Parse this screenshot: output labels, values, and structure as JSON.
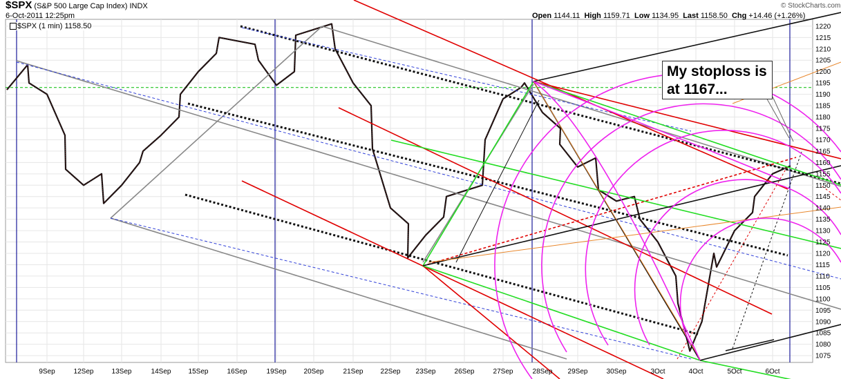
{
  "header": {
    "symbol": "$SPX",
    "name": "(S&P 500 Large Cap Index)",
    "exchange": "INDX",
    "date": "6-Oct-2011 12:25pm",
    "legend": "$SPX (1 min) 1158.50",
    "quote": {
      "open_label": "Open",
      "open": "1144.11",
      "high_label": "High",
      "high": "1159.71",
      "low_label": "Low",
      "low": "1134.95",
      "last_label": "Last",
      "last": "1158.50",
      "chg_label": "Chg",
      "chg": "+14.46 (+1.26%)"
    },
    "watermark": "© StockCharts.com"
  },
  "annotation": "My stoploss is at 1167...",
  "chart_data": {
    "type": "line",
    "title": "$SPX (1 min) 1158.50",
    "xlabel": "",
    "ylabel": "",
    "ylim": [
      1072,
      1223
    ],
    "x_ticks": [
      "9Sep",
      "12Sep",
      "13Sep",
      "14Sep",
      "15Sep",
      "16Sep",
      "19Sep",
      "20Sep",
      "21Sep",
      "22Sep",
      "23Sep",
      "26Sep",
      "27Sep",
      "28Sep",
      "29Sep",
      "30Sep",
      "3Oct",
      "4Oct",
      "5Oct",
      "6Oct"
    ],
    "y_ticks": [
      1075,
      1080,
      1085,
      1090,
      1095,
      1100,
      1105,
      1110,
      1115,
      1120,
      1125,
      1130,
      1135,
      1140,
      1145,
      1150,
      1155,
      1160,
      1165,
      1170,
      1175,
      1180,
      1185,
      1190,
      1195,
      1200,
      1205,
      1210,
      1215,
      1220
    ],
    "series": [
      {
        "name": "$SPX (1 min)",
        "points": [
          [
            "8Sep",
            1192
          ],
          [
            "8Sep",
            1203
          ],
          [
            "9Sep",
            1195
          ],
          [
            "9Sep",
            1190
          ],
          [
            "9Sep",
            1172
          ],
          [
            "12Sep",
            1157
          ],
          [
            "12Sep",
            1150
          ],
          [
            "12Sep",
            1155
          ],
          [
            "13Sep",
            1142
          ],
          [
            "13Sep",
            1150
          ],
          [
            "13Sep",
            1160
          ],
          [
            "14Sep",
            1165
          ],
          [
            "14Sep",
            1172
          ],
          [
            "14Sep",
            1180
          ],
          [
            "15Sep",
            1190
          ],
          [
            "15Sep",
            1200
          ],
          [
            "15Sep",
            1208
          ],
          [
            "16Sep",
            1215
          ],
          [
            "16Sep",
            1212
          ],
          [
            "19Sep",
            1205
          ],
          [
            "19Sep",
            1194
          ],
          [
            "19Sep",
            1200
          ],
          [
            "20Sep",
            1216
          ],
          [
            "20Sep",
            1221
          ],
          [
            "21Sep",
            1210
          ],
          [
            "21Sep",
            1195
          ],
          [
            "21Sep",
            1185
          ],
          [
            "22Sep",
            1166
          ],
          [
            "22Sep",
            1140
          ],
          [
            "22Sep",
            1133
          ],
          [
            "23Sep",
            1118
          ],
          [
            "23Sep",
            1128
          ],
          [
            "23Sep",
            1136
          ],
          [
            "26Sep",
            1145
          ],
          [
            "26Sep",
            1150
          ],
          [
            "27Sep",
            1170
          ],
          [
            "27Sep",
            1188
          ],
          [
            "27Sep",
            1193
          ],
          [
            "28Sep",
            1195
          ],
          [
            "28Sep",
            1182
          ],
          [
            "28Sep",
            1175
          ],
          [
            "29Sep",
            1168
          ],
          [
            "29Sep",
            1158
          ],
          [
            "29Sep",
            1162
          ],
          [
            "30Sep",
            1148
          ],
          [
            "30Sep",
            1143
          ],
          [
            "30Sep",
            1145
          ],
          [
            "3Oct",
            1135
          ],
          [
            "3Oct",
            1125
          ],
          [
            "3Oct",
            1110
          ],
          [
            "4Oct",
            1098
          ],
          [
            "4Oct",
            1077
          ],
          [
            "4Oct",
            1090
          ],
          [
            "4Oct",
            1120
          ],
          [
            "5Oct",
            1114
          ],
          [
            "5Oct",
            1130
          ],
          [
            "5Oct",
            1138
          ],
          [
            "6Oct",
            1145
          ],
          [
            "6Oct",
            1155
          ],
          [
            "6Oct",
            1158.5
          ]
        ]
      }
    ],
    "reference_lines": [
      {
        "type": "horizontal",
        "y": 1193,
        "color": "#00bb00",
        "style": "dashed"
      }
    ],
    "grid": true
  },
  "colors": {
    "price": "#111111",
    "grid": "#e6e6e6",
    "separator": "#1a1a9a",
    "red": "#e00000",
    "green": "#22dd22",
    "gray": "#888888",
    "magenta": "#ee22ee",
    "orange": "#e8862a",
    "blue_dashed": "#2f3fd8"
  }
}
